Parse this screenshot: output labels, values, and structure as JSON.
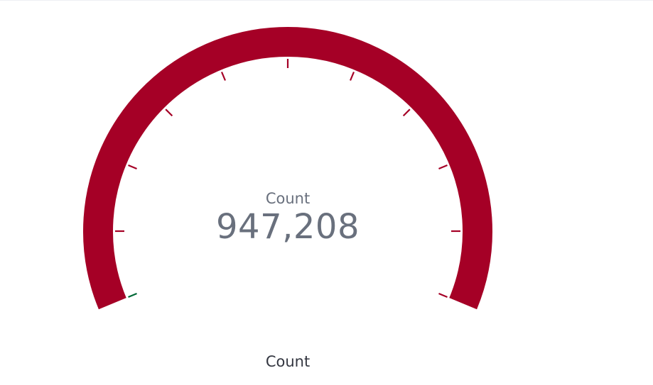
{
  "chart_data": {
    "type": "gauge",
    "value": 947208,
    "value_text": "947,208",
    "label": "Count",
    "title": "Count",
    "fill_fraction": 1.0,
    "tick_count": 11,
    "colors": {
      "arc": "#a50026",
      "ticks": "#a50026",
      "start_marker": "#006837",
      "label_text": "#69707d",
      "title_text": "#343741"
    }
  }
}
